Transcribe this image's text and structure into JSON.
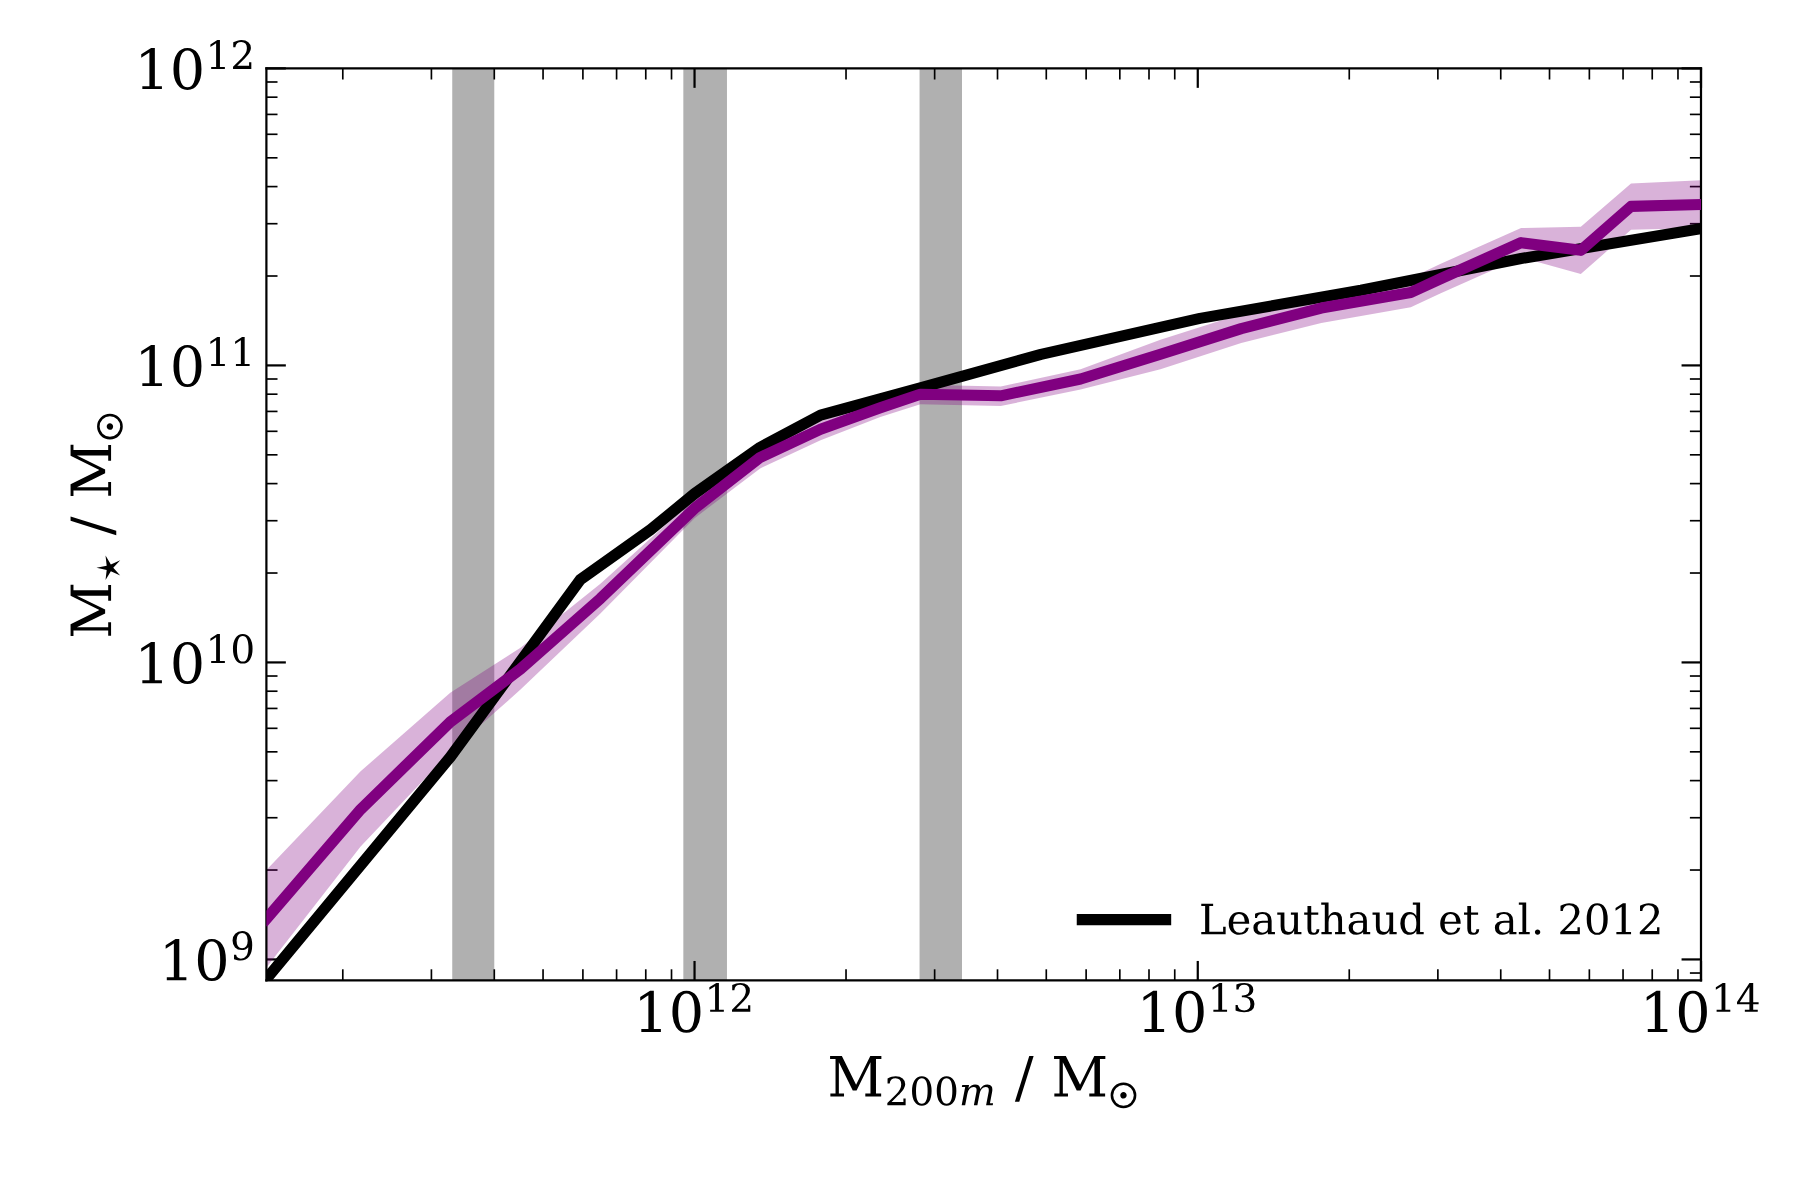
{
  "chart_data": {
    "type": "line",
    "xlabel": "M$_{200m}$ / M$_{☉}$",
    "ylabel": "M$_{⋆}$ / M$_{☉}$",
    "log": "xy",
    "xlim": [
      141000000000.0,
      100000000000000.0
    ],
    "ylim": [
      850000000.0,
      1000000000000.0
    ],
    "xticks": [
      {
        "value": 1000000000000.0,
        "label": "10$^{12}$"
      },
      {
        "value": 10000000000000.0,
        "label": "10$^{13}$"
      },
      {
        "value": 100000000000000.0,
        "label": "10$^{14}$"
      }
    ],
    "yticks": [
      {
        "value": 1000000000.0,
        "label": "10$^{9}$"
      },
      {
        "value": 10000000000.0,
        "label": "10$^{10}$"
      },
      {
        "value": 100000000000.0,
        "label": "10$^{11}$"
      },
      {
        "value": 1000000000000.0,
        "label": "10$^{12}$"
      }
    ],
    "grid": false,
    "legend": "bottom right",
    "bands": [
      {
        "axis": "x",
        "from": 330000000000.0,
        "to": 400000000000.0,
        "color": "#b0b0b0"
      },
      {
        "axis": "x",
        "from": 950000000000.0,
        "to": 1160000000000.0,
        "color": "#b0b0b0"
      },
      {
        "axis": "x",
        "from": 2800000000000.0,
        "to": 3400000000000.0,
        "color": "#b0b0b0"
      }
    ],
    "series": [
      {
        "name": "Leauthaud et al. 2012",
        "color": "#000000",
        "x": [
          141000000000.0,
          327000000000.0,
          593000000000.0,
          818000000000.0,
          1000000000000.0,
          1350000000000.0,
          1780000000000.0,
          2810000000000.0,
          4880000000000.0,
          10100000000000.0,
          21100000000000.0,
          43900000000000.0,
          100000000000000.0
        ],
        "values": [
          860000000.0,
          4800000000.0,
          19000000000.0,
          28000000000.0,
          37000000000.0,
          53000000000.0,
          68000000000.0,
          84000000000.0,
          109000000000.0,
          144000000000.0,
          179000000000.0,
          229000000000.0,
          289000000000.0
        ]
      },
      {
        "color": "#800080",
        "x": [
          141000000000.0,
          217000000000.0,
          327000000000.0,
          451000000000.0,
          650000000000.0,
          1000000000000.0,
          1350000000000.0,
          1780000000000.0,
          2340000000000.0,
          2810000000000.0,
          4060000000000.0,
          5850000000000.0,
          8430000000000.0,
          12200000000000.0,
          17600000000000.0,
          26500000000000.0,
          30400000000000.0,
          43900000000000.0,
          57700000000000.0,
          72600000000000.0,
          100000000000000.0
        ],
        "values": [
          1370000000.0,
          3200000000.0,
          6300000000.0,
          9500000000.0,
          16400000000.0,
          33000000000.0,
          49000000000.0,
          61000000000.0,
          72000000000.0,
          80000000000.0,
          79000000000.0,
          90000000000.0,
          109000000000.0,
          133000000000.0,
          156000000000.0,
          176000000000.0,
          196000000000.0,
          259000000000.0,
          244000000000.0,
          343000000000.0,
          348000000000.0
        ],
        "lower": [
          940000000.0,
          2400000000.0,
          5000000000.0,
          8100000000.0,
          14600000000.0,
          30600000000.0,
          45000000000.0,
          56000000000.0,
          67000000000.0,
          74000000000.0,
          73000000000.0,
          83000000000.0,
          97000000000.0,
          119000000000.0,
          139000000000.0,
          157000000000.0,
          175000000000.0,
          231000000000.0,
          203000000000.0,
          286000000000.0,
          290000000000.0
        ],
        "upper": [
          2000000000.0,
          4300000000.0,
          7900000000.0,
          11200000000.0,
          18400000000.0,
          35600000000.0,
          53000000000.0,
          66000000000.0,
          78000000000.0,
          86000000000.0,
          85000000000.0,
          97000000000.0,
          122000000000.0,
          149000000000.0,
          175000000000.0,
          197000000000.0,
          220000000000.0,
          290000000000.0,
          293000000000.0,
          410000000000.0,
          420000000000.0
        ]
      }
    ]
  }
}
